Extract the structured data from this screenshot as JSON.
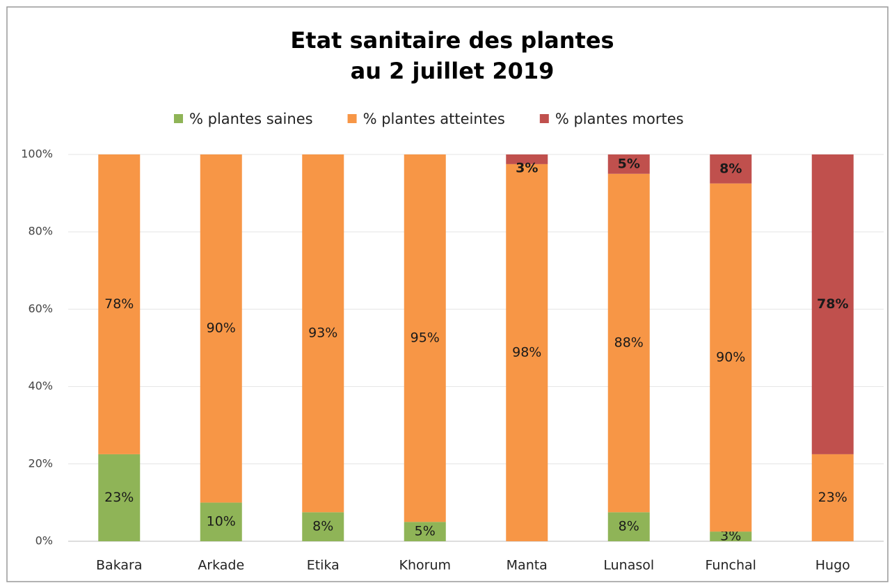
{
  "chart_data": {
    "type": "stacked_bar",
    "title": [
      "Etat sanitaire des plantes",
      "au 2 juillet 2019"
    ],
    "categories": [
      "Bakara",
      "Arkade",
      "Etika",
      "Khorum",
      "Manta",
      "Lunasol",
      "Funchal",
      "Hugo"
    ],
    "series": [
      {
        "name": "% plantes saines",
        "color": "#8fb457",
        "values": [
          22.5,
          10,
          7.5,
          5,
          0,
          7.5,
          2.5,
          0
        ],
        "value_labels": [
          "23%",
          "10%",
          "8%",
          "5%",
          null,
          "8%",
          "3%",
          null
        ]
      },
      {
        "name": "% plantes atteintes",
        "color": "#f79646",
        "values": [
          77.5,
          90,
          92.5,
          95,
          97.5,
          87.5,
          90,
          22.5
        ],
        "value_labels": [
          "78%",
          "90%",
          "93%",
          "95%",
          "98%",
          "88%",
          "90%",
          "23%"
        ]
      },
      {
        "name": "% plantes mortes",
        "color": "#c0504d",
        "values": [
          0,
          0,
          0,
          0,
          2.5,
          5,
          7.5,
          77.5
        ],
        "value_labels": [
          null,
          null,
          null,
          null,
          "3%",
          "5%",
          "8%",
          "78%"
        ]
      }
    ],
    "ylim": [
      0,
      100
    ],
    "yticks": [
      {
        "value": 0,
        "label": "0%"
      },
      {
        "value": 20,
        "label": "20%"
      },
      {
        "value": 40,
        "label": "40%"
      },
      {
        "value": 60,
        "label": "60%"
      },
      {
        "value": 80,
        "label": "80%"
      },
      {
        "value": 100,
        "label": "100%"
      }
    ],
    "grid": true,
    "legend": "top"
  }
}
